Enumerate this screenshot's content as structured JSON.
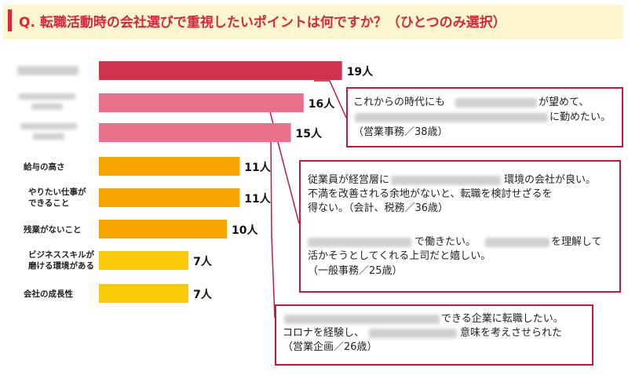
{
  "question": "Q.  転職活動時の会社選びで重視したいポイントは何ですか？（ひとつのみ選択）",
  "colors": {
    "accent": "#d7263d",
    "bar_dark": "#d1334e",
    "bar_pink": "#e8708a",
    "bar_orange": "#f7a400",
    "bar_yellow": "#f9c90a",
    "box_border": "#c8193c"
  },
  "chart_data": {
    "type": "bar",
    "orientation": "horizontal",
    "categories": [
      "",
      "",
      "",
      "給与の高さ",
      "やりたい仕事が\nできること",
      "残業がないこと",
      "ビジネススキルが\n磨ける環境がある",
      "会社の成長性"
    ],
    "values": [
      19,
      16,
      15,
      11,
      11,
      10,
      7,
      7
    ],
    "value_labels": [
      "19人",
      "16人",
      "15人",
      "11人",
      "11人",
      "10人",
      "7人",
      "7人"
    ],
    "unit": "人",
    "xlim": [
      0,
      20
    ],
    "grid": false,
    "legend": "none"
  },
  "comments": [
    {
      "lines": [
        {
          "a": "これからの時代にも",
          "b": "が望めて、"
        },
        {
          "a": "",
          "b": "に勤めたい。"
        },
        {
          "a": "（営業事務／38歳）",
          "b": ""
        }
      ]
    },
    {
      "lines": [
        {
          "a": "従業員が経営層に",
          "b": "環境の会社が良い。"
        },
        {
          "a": "不満を改善される余地がないと、転職を検討せざるを",
          "b": ""
        },
        {
          "a": "得ない。（会計、税務／36歳）",
          "b": ""
        },
        {
          "a": "",
          "b": "で働きたい。",
          "c": "を理解して"
        },
        {
          "a": "活かそうとしてくれる上司だと嬉しい。",
          "b": ""
        },
        {
          "a": "（一般事務／25歳）",
          "b": ""
        }
      ]
    },
    {
      "lines": [
        {
          "a": "",
          "b": "できる企業に転職したい。"
        },
        {
          "a": "コロナを経験し、",
          "b": "意味を考えさせられた"
        },
        {
          "a": "（営業企画／26歳）",
          "b": ""
        }
      ]
    }
  ]
}
